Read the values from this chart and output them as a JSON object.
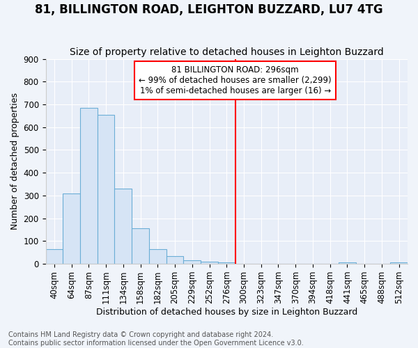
{
  "title": "81, BILLINGTON ROAD, LEIGHTON BUZZARD, LU7 4TG",
  "subtitle": "Size of property relative to detached houses in Leighton Buzzard",
  "xlabel": "Distribution of detached houses by size in Leighton Buzzard",
  "ylabel": "Number of detached properties",
  "footnote": "Contains HM Land Registry data © Crown copyright and database right 2024.\nContains public sector information licensed under the Open Government Licence v3.0.",
  "bar_labels": [
    "40sqm",
    "64sqm",
    "87sqm",
    "111sqm",
    "134sqm",
    "158sqm",
    "182sqm",
    "205sqm",
    "229sqm",
    "252sqm",
    "276sqm",
    "300sqm",
    "323sqm",
    "347sqm",
    "370sqm",
    "394sqm",
    "418sqm",
    "441sqm",
    "465sqm",
    "488sqm",
    "512sqm"
  ],
  "bar_values": [
    65,
    310,
    685,
    655,
    330,
    155,
    65,
    35,
    15,
    10,
    5,
    0,
    0,
    0,
    0,
    0,
    0,
    5,
    0,
    0,
    5
  ],
  "bar_facecolor": "#d6e4f5",
  "bar_edgecolor": "#6baed6",
  "annotation_text": "81 BILLINGTON ROAD: 296sqm\n← 99% of detached houses are smaller (2,299)\n1% of semi-detached houses are larger (16) →",
  "vline_index": 11,
  "ylim": [
    0,
    900
  ],
  "yticks": [
    0,
    100,
    200,
    300,
    400,
    500,
    600,
    700,
    800,
    900
  ],
  "background_color": "#f0f4fa",
  "plot_background": "#e8eef8",
  "grid_color": "#ffffff",
  "title_fontsize": 12,
  "subtitle_fontsize": 10,
  "axis_fontsize": 9,
  "tick_fontsize": 8.5,
  "footnote_fontsize": 7
}
